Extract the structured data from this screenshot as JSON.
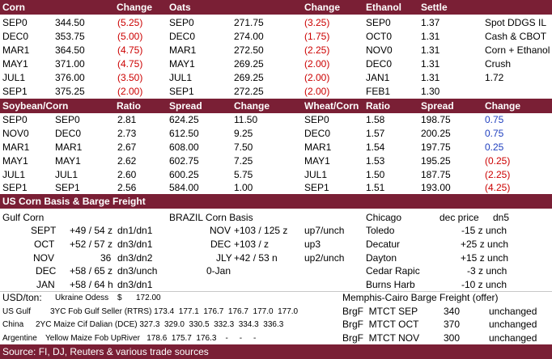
{
  "top_header": {
    "corn": "Corn",
    "corn_change": "Change",
    "oats": "Oats",
    "oats_change": "Change",
    "ethanol": "Ethanol",
    "ethanol_settle": "Settle"
  },
  "corn_rows": [
    {
      "month": "SEP0",
      "price": "344.50",
      "change": "(5.25)"
    },
    {
      "month": "DEC0",
      "price": "353.75",
      "change": "(5.00)"
    },
    {
      "month": "MAR1",
      "price": "364.50",
      "change": "(4.75)"
    },
    {
      "month": "MAY1",
      "price": "371.00",
      "change": "(4.75)"
    },
    {
      "month": "JUL1",
      "price": "376.00",
      "change": "(3.50)"
    },
    {
      "month": "SEP1",
      "price": "375.25",
      "change": "(2.00)"
    }
  ],
  "oats_rows": [
    {
      "month": "SEP0",
      "price": "271.75",
      "change": "(3.25)"
    },
    {
      "month": "DEC0",
      "price": "274.00",
      "change": "(1.75)"
    },
    {
      "month": "MAR1",
      "price": "272.50",
      "change": "(2.25)"
    },
    {
      "month": "MAY1",
      "price": "269.25",
      "change": "(2.00)"
    },
    {
      "month": "JUL1",
      "price": "269.25",
      "change": "(2.00)"
    },
    {
      "month": "SEP1",
      "price": "272.25",
      "change": "(2.00)"
    }
  ],
  "ethanol_rows": [
    {
      "month": "SEP0",
      "settle": "1.37",
      "extra": "Spot DDGS IL"
    },
    {
      "month": "OCT0",
      "settle": "1.31",
      "extra": "Cash & CBOT"
    },
    {
      "month": "NOV0",
      "settle": "1.31",
      "extra": "Corn + Ethanol"
    },
    {
      "month": "DEC0",
      "settle": "1.31",
      "extra": "Crush"
    },
    {
      "month": "JAN1",
      "settle": "1.31",
      "extra": "1.72"
    },
    {
      "month": "FEB1",
      "settle": "1.30",
      "extra": ""
    }
  ],
  "spread_header": {
    "soy_corn": "Soybean/Corn",
    "ratio": "Ratio",
    "spread": "Spread",
    "change": "Change",
    "wheat_corn": "Wheat/Corn",
    "ratio2": "Ratio",
    "spread2": "Spread",
    "change2": "Change"
  },
  "soy_rows": [
    {
      "m1": "SEP0",
      "m2": "SEP0",
      "ratio": "2.81",
      "spread": "624.25",
      "change": "11.50"
    },
    {
      "m1": "NOV0",
      "m2": "DEC0",
      "ratio": "2.73",
      "spread": "612.50",
      "change": "9.25"
    },
    {
      "m1": "MAR1",
      "m2": "MAR1",
      "ratio": "2.67",
      "spread": "608.00",
      "change": "7.50"
    },
    {
      "m1": "MAY1",
      "m2": "MAY1",
      "ratio": "2.62",
      "spread": "602.75",
      "change": "7.25"
    },
    {
      "m1": "JUL1",
      "m2": "JUL1",
      "ratio": "2.60",
      "spread": "600.25",
      "change": "5.75"
    },
    {
      "m1": "SEP1",
      "m2": "SEP1",
      "ratio": "2.56",
      "spread": "584.00",
      "change": "1.00"
    }
  ],
  "wheat_rows": [
    {
      "month": "SEP0",
      "ratio": "1.58",
      "spread": "198.75",
      "change": "0.75",
      "color": "blue"
    },
    {
      "month": "DEC0",
      "ratio": "1.57",
      "spread": "200.25",
      "change": "0.75",
      "color": "blue"
    },
    {
      "month": "MAR1",
      "ratio": "1.54",
      "spread": "197.75",
      "change": "0.25",
      "color": "blue"
    },
    {
      "month": "MAY1",
      "ratio": "1.53",
      "spread": "195.25",
      "change": "(0.25)",
      "color": "red"
    },
    {
      "month": "JUL1",
      "ratio": "1.50",
      "spread": "187.75",
      "change": "(2.25)",
      "color": "red"
    },
    {
      "month": "SEP1",
      "ratio": "1.51",
      "spread": "193.00",
      "change": "(4.25)",
      "color": "red"
    }
  ],
  "basis_header": "US Corn Basis & Barge Freight",
  "gulf_title": "Gulf Corn",
  "gulf_rows": [
    {
      "month": "SEPT",
      "val": "+49 / 54 z",
      "code": "dn1/dn1"
    },
    {
      "month": "OCT",
      "val": "+52 / 57 z",
      "code": "dn3/dn1"
    },
    {
      "month": "NOV",
      "val": "36",
      "code": "dn3/dn2"
    },
    {
      "month": "DEC",
      "val": "+58 / 65 z",
      "code": "dn3/unch"
    },
    {
      "month": "JAN",
      "val": "+58 / 64 h",
      "code": "dn3/dn1"
    }
  ],
  "brazil_title": "BRAZIL Corn Basis",
  "brazil_rows": [
    {
      "month": "NOV",
      "val": "+103 / 125 z",
      "code": "up7/unch"
    },
    {
      "month": "DEC",
      "val": "+103 / z",
      "code": "up3"
    },
    {
      "month": "JLY",
      "val": "+42 / 53 n",
      "code": "up2/unch"
    },
    {
      "month": "",
      "val": "0-Jan",
      "code": ""
    }
  ],
  "chicago": {
    "label": "Chicago",
    "price_label": "dec price",
    "change": "dn5"
  },
  "interior_rows": [
    {
      "loc": "Toledo",
      "val": "-15 z unch"
    },
    {
      "loc": "Decatur",
      "val": "+25 z unch"
    },
    {
      "loc": "Dayton",
      "val": "+15 z unch"
    },
    {
      "loc": "Cedar Rapic",
      "val": "-3 z unch"
    },
    {
      "loc": "Burns Harb",
      "val": "-10 z unch"
    }
  ],
  "usd_ton": {
    "label": "USD/ton:",
    "item": "Ukraine Odess",
    "currency": "$",
    "value": "172.00"
  },
  "memphis_title": "Memphis-Cairo Barge Freight (offer)",
  "usd_rows": [
    {
      "region": "US Gulf",
      "desc": "3YC Fob Gulf Seller (RTRS) 173.4  177.1  176.7  176.7  177.0  177.0"
    },
    {
      "region": "China",
      "desc": "2YC Maize Cif Dalian (DCE) 327.3  329.0  330.5  332.3  334.3  336.3"
    },
    {
      "region": "Argentine",
      "desc": "Yellow Maize Fob UpRiver   178.6  175.7  176.3    -     -     -"
    }
  ],
  "barge_rows": [
    {
      "label": "BrgF  MTCT SEP",
      "val": "340",
      "status": "unchanged"
    },
    {
      "label": "BrgF  MTCT OCT",
      "val": "370",
      "status": "unchanged"
    },
    {
      "label": "BrgF  MTCT NOV",
      "val": "300",
      "status": "unchanged"
    }
  ],
  "source": "Source: FI, DJ, Reuters & various trade sources",
  "colors": {
    "header_bg": "#7a1f35",
    "negative": "#cc0000",
    "positive": "#1f3fbf"
  }
}
